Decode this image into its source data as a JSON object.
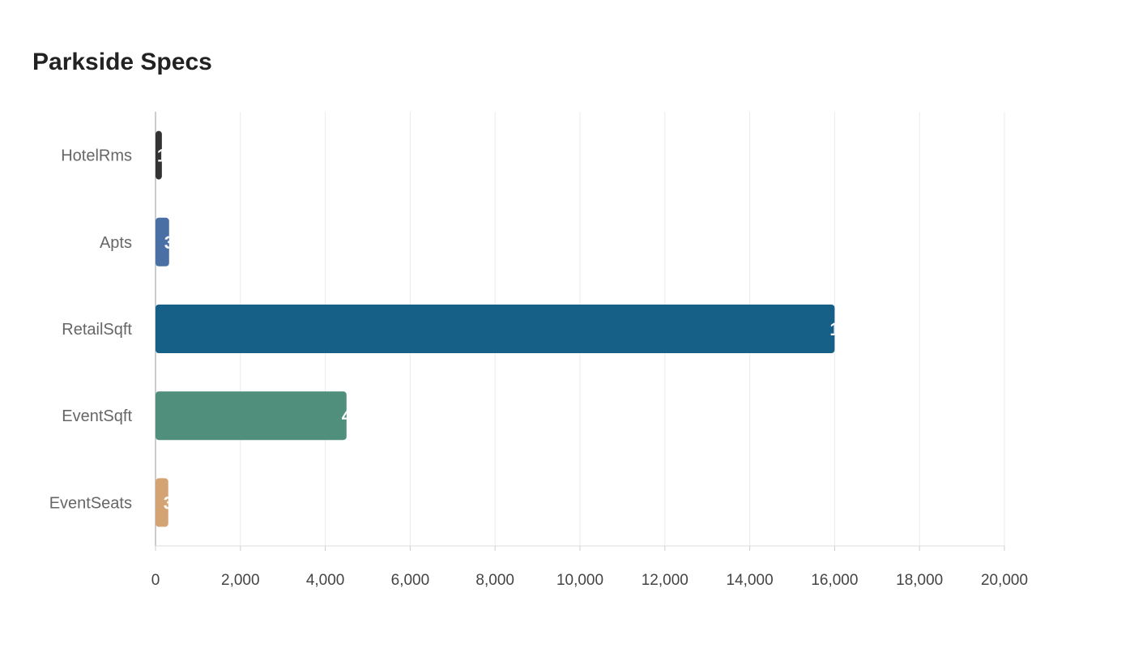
{
  "chart_data": {
    "type": "bar",
    "orientation": "horizontal",
    "title": "Parkside Specs",
    "xlabel": "",
    "ylabel": "",
    "categories": [
      "HotelRms",
      "Apts",
      "RetailSqft",
      "EventSqft",
      "EventSeats"
    ],
    "values": [
      150,
      320,
      16000,
      4500,
      300
    ],
    "colors": [
      "#333333",
      "#4a6fa5",
      "#166088",
      "#4f8f7c",
      "#d4a373"
    ],
    "xlim": [
      0,
      20000
    ],
    "xticks": [
      0,
      2000,
      4000,
      6000,
      8000,
      10000,
      12000,
      14000,
      16000,
      18000,
      20000
    ],
    "xtick_labels": [
      "0",
      "2,000",
      "4,000",
      "6,000",
      "8,000",
      "10,000",
      "12,000",
      "14,000",
      "16,000",
      "18,000",
      "20,000"
    ],
    "grid": true,
    "legend": "none"
  }
}
